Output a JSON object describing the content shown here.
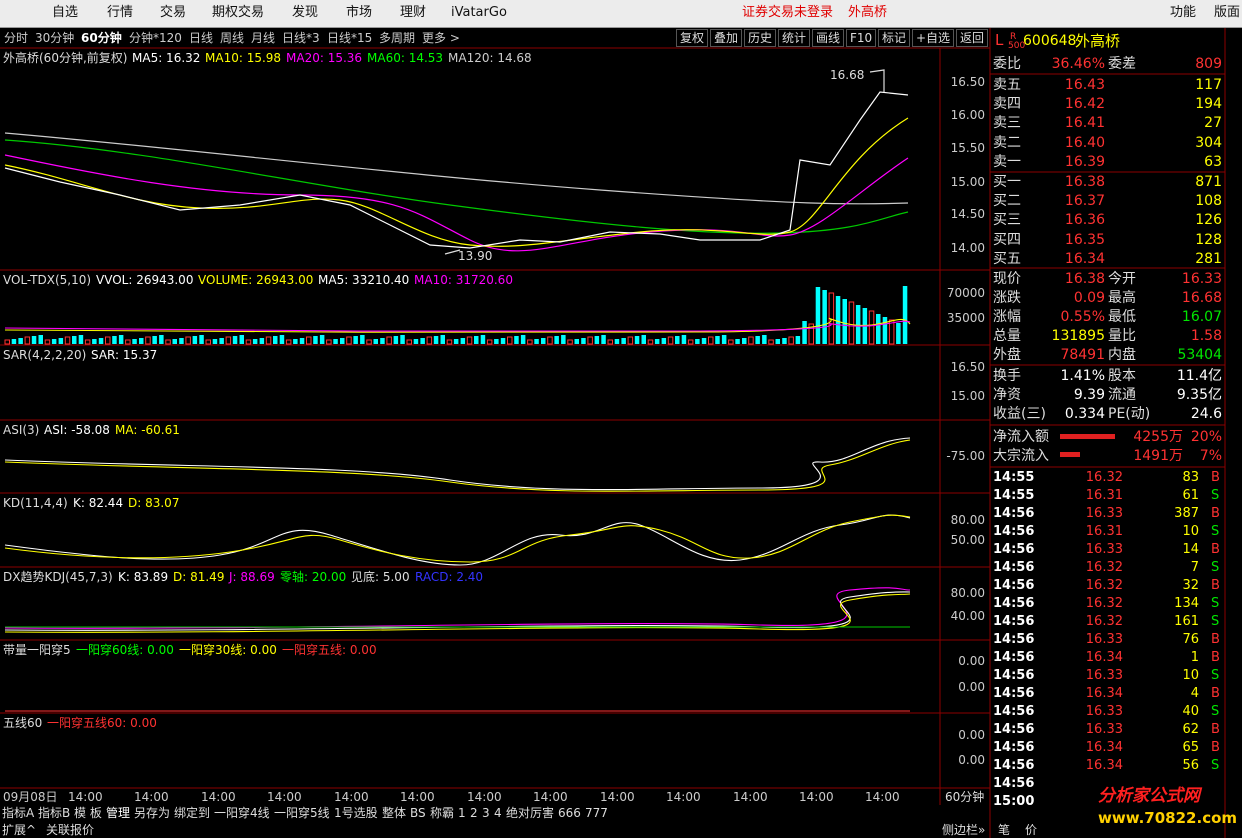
{
  "menu": {
    "items": [
      "自选",
      "行情",
      "交易",
      "期权交易",
      "发现",
      "市场",
      "理财",
      "iVatarGo"
    ],
    "status": "证券交易未登录",
    "stock": "外高桥",
    "right": [
      "功能",
      "版面"
    ]
  },
  "toolbar": {
    "periods": [
      "分时",
      "30分钟",
      "60分钟",
      "分钟*120",
      "日线",
      "周线",
      "月线",
      "日线*3",
      "日线*15",
      "多周期",
      "更多 >"
    ],
    "buttons": [
      "复权",
      "叠加",
      "历史",
      "统计",
      "画线",
      "F10",
      "标记",
      "+自选",
      "返回"
    ]
  },
  "panels": [
    {
      "top": 48,
      "header": [
        {
          "text": "外高桥(60分钟,前复权)",
          "color": "#dddddd"
        },
        {
          "text": "MA5: 16.32",
          "color": "#ffffff"
        },
        {
          "text": "MA10: 15.98",
          "color": "#ffff00"
        },
        {
          "text": "MA20: 15.36",
          "color": "#ff00ff"
        },
        {
          "text": "MA60: 14.53",
          "color": "#00ff00"
        },
        {
          "text": "MA120: 14.68",
          "color": "#cccccc"
        }
      ],
      "yticks": [
        "16.50",
        "16.00",
        "15.50",
        "15.00",
        "14.50",
        "14.00"
      ],
      "notes": [
        "16.68",
        "13.90"
      ]
    },
    {
      "top": 270,
      "header": [
        {
          "text": "VOL-TDX(5,10)",
          "color": "#dddddd"
        },
        {
          "text": "VVOL: 26943.00",
          "color": "#ffffff"
        },
        {
          "text": "VOLUME: 26943.00",
          "color": "#ffff00"
        },
        {
          "text": "MA5: 33210.40",
          "color": "#ffffff"
        },
        {
          "text": "MA10: 31720.60",
          "color": "#ff00ff"
        }
      ],
      "yticks": [
        "70000",
        "35000"
      ]
    },
    {
      "top": 345,
      "header": [
        {
          "text": "SAR(4,2,2,20)",
          "color": "#dddddd"
        },
        {
          "text": "SAR: 15.37",
          "color": "#ffffff"
        }
      ],
      "yticks": [
        "16.50",
        "15.00"
      ]
    },
    {
      "top": 420,
      "header": [
        {
          "text": "ASI(3)",
          "color": "#dddddd"
        },
        {
          "text": "ASI: -58.08",
          "color": "#ffffff"
        },
        {
          "text": "MA: -60.61",
          "color": "#ffff00"
        }
      ],
      "yticks": [
        "-75.00"
      ]
    },
    {
      "top": 493,
      "header": [
        {
          "text": "KD(11,4,4)",
          "color": "#dddddd"
        },
        {
          "text": "K: 82.44",
          "color": "#ffffff"
        },
        {
          "text": "D: 83.07",
          "color": "#ffff00"
        }
      ],
      "yticks": [
        "80.00",
        "50.00"
      ]
    },
    {
      "top": 567,
      "header": [
        {
          "text": "DX趋势KDJ(45,7,3)",
          "color": "#dddddd"
        },
        {
          "text": "K: 83.89",
          "color": "#ffffff"
        },
        {
          "text": "D: 81.49",
          "color": "#ffff00"
        },
        {
          "text": "J: 88.69",
          "color": "#ff00ff"
        },
        {
          "text": "零轴: 20.00",
          "color": "#00ff00"
        },
        {
          "text": "见底: 5.00",
          "color": "#dddddd"
        },
        {
          "text": "RACD: 2.40",
          "color": "#3333ff"
        }
      ],
      "yticks": [
        "80.00",
        "40.00"
      ]
    },
    {
      "top": 640,
      "header": [
        {
          "text": "带量一阳穿5",
          "color": "#dddddd"
        },
        {
          "text": "一阳穿60线: 0.00",
          "color": "#00ff00"
        },
        {
          "text": "一阳穿30线: 0.00",
          "color": "#ffff00"
        },
        {
          "text": "一阳穿五线: 0.00",
          "color": "#ff3232"
        }
      ],
      "yticks": [
        "0.00",
        "0.00"
      ]
    },
    {
      "top": 713,
      "header": [
        {
          "text": "五线60",
          "color": "#dddddd"
        },
        {
          "text": "一阳穿五线60: 0.00",
          "color": "#ff3232"
        }
      ],
      "yticks": [
        "0.00",
        "0.00"
      ]
    }
  ],
  "timeaxis": {
    "labels": [
      "09月08日",
      "14:00",
      "14:00",
      "14:00",
      "14:00",
      "14:00",
      "14:00",
      "14:00",
      "14:00",
      "14:00",
      "14:00",
      "14:00",
      "14:00",
      "14:00"
    ],
    "period": "60分钟"
  },
  "tabs": [
    "指标A",
    "指标B",
    "模 板",
    "管理",
    "另存为",
    "绑定到",
    "一阳穿4线",
    "一阳穿5线",
    "1号选股",
    "整体",
    "BS",
    "称霸",
    "1",
    "2",
    "3",
    "4",
    "绝对厉害",
    "666",
    "777"
  ],
  "footer": {
    "left": [
      "扩展^",
      "关联报价"
    ],
    "right": [
      "侧边栏»",
      "笔",
      "价"
    ]
  },
  "quote": {
    "market": "L",
    "flag": "R",
    "flag_sub": "500",
    "code": "600648",
    "name": "外高桥",
    "ratio": [
      "委比",
      "36.46%",
      "委差",
      "809"
    ],
    "sells": [
      [
        "卖五",
        "16.43",
        "117"
      ],
      [
        "卖四",
        "16.42",
        "194"
      ],
      [
        "卖三",
        "16.41",
        "27"
      ],
      [
        "卖二",
        "16.40",
        "304"
      ],
      [
        "卖一",
        "16.39",
        "63"
      ]
    ],
    "buys": [
      [
        "买一",
        "16.38",
        "871"
      ],
      [
        "买二",
        "16.37",
        "108"
      ],
      [
        "买三",
        "16.36",
        "126"
      ],
      [
        "买四",
        "16.35",
        "128"
      ],
      [
        "买五",
        "16.34",
        "281"
      ]
    ],
    "stats": [
      [
        "现价",
        "16.38",
        "今开",
        "16.33"
      ],
      [
        "涨跌",
        "0.09",
        "最高",
        "16.68"
      ],
      [
        "涨幅",
        "0.55%",
        "最低",
        "16.07"
      ],
      [
        "总量",
        "131895",
        "量比",
        "1.58"
      ],
      [
        "外盘",
        "78491",
        "内盘",
        "53404"
      ]
    ],
    "info": [
      [
        "换手",
        "1.41%",
        "股本",
        "11.4亿"
      ],
      [
        "净资",
        "9.39",
        "流通",
        "9.35亿"
      ],
      [
        "收益(三)",
        "0.334",
        "PE(动)",
        "24.6"
      ]
    ],
    "flow": [
      [
        "净流入额",
        "4255万",
        "20%"
      ],
      [
        "大宗流入",
        "1491万",
        "7%"
      ]
    ],
    "ticks": [
      [
        "14:55",
        "16.32",
        "83",
        "B"
      ],
      [
        "14:55",
        "16.31",
        "61",
        "S"
      ],
      [
        "14:56",
        "16.33",
        "387",
        "B"
      ],
      [
        "14:56",
        "16.31",
        "10",
        "S"
      ],
      [
        "14:56",
        "16.33",
        "14",
        "B"
      ],
      [
        "14:56",
        "16.32",
        "7",
        "S"
      ],
      [
        "14:56",
        "16.32",
        "32",
        "B"
      ],
      [
        "14:56",
        "16.32",
        "134",
        "S"
      ],
      [
        "14:56",
        "16.32",
        "161",
        "S"
      ],
      [
        "14:56",
        "16.33",
        "76",
        "B"
      ],
      [
        "14:56",
        "16.34",
        "1",
        "B"
      ],
      [
        "14:56",
        "16.33",
        "10",
        "S"
      ],
      [
        "14:56",
        "16.34",
        "4",
        "B"
      ],
      [
        "14:56",
        "16.33",
        "40",
        "S"
      ],
      [
        "14:56",
        "16.33",
        "62",
        "B"
      ],
      [
        "14:56",
        "16.34",
        "65",
        "B"
      ],
      [
        "14:56",
        "16.34",
        "56",
        "S"
      ],
      [
        "14:56"
      ],
      [
        "15:00"
      ]
    ]
  },
  "watermark": [
    "分析家公式网",
    "www.70822.com"
  ]
}
